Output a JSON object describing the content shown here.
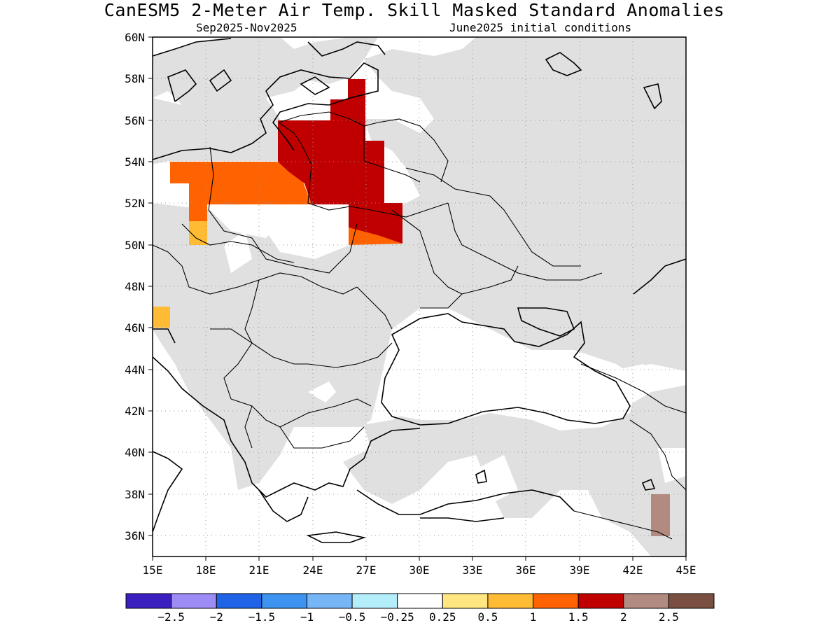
{
  "title": "CanESM5 2-Meter Air Temp. Skill Masked Standard Anomalies",
  "subtitle_left": "Sep2025-Nov2025",
  "subtitle_right": "June2025 initial conditions",
  "map": {
    "lon_range": [
      15,
      45
    ],
    "lat_range": [
      35,
      60
    ],
    "lon_ticks": [
      "15E",
      "18E",
      "21E",
      "24E",
      "27E",
      "30E",
      "33E",
      "36E",
      "39E",
      "42E",
      "45E"
    ],
    "lat_ticks": [
      "60N",
      "58N",
      "56N",
      "54N",
      "52N",
      "50N",
      "48N",
      "46N",
      "44N",
      "42N",
      "40N",
      "38N",
      "36N"
    ],
    "grid": "dotted",
    "no_skill_color": "#e0e0e0",
    "ocean_color": "#ffffff",
    "coastline_color": "#000000"
  },
  "anomaly_regions": [
    {
      "name": "Poland/Belarus orange",
      "category": "1 to 1.5",
      "color": "#ff6200"
    },
    {
      "name": "Belarus/N. Ukraine dark red",
      "category": "1.5 to 2",
      "color": "#c00000"
    },
    {
      "name": "S. Poland light orange",
      "category": "0.5 to 1",
      "color": "#ffbb33"
    },
    {
      "name": "Slovenia light orange",
      "category": "0.5 to 1",
      "color": "#ffbb33"
    },
    {
      "name": "SE Turkey brown",
      "category": "2 to 2.5",
      "color": "#b38a80"
    }
  ],
  "colorbar": {
    "colors": [
      "#3b1fbf",
      "#9d8cf5",
      "#1f63e6",
      "#3c93f0",
      "#76b6f7",
      "#b4eefb",
      "#ffffff",
      "#ffe680",
      "#ffbb33",
      "#ff6200",
      "#c00000",
      "#b38a80",
      "#7a4f41"
    ],
    "labels": [
      "-2.5",
      "-2",
      "-1.5",
      "-1",
      "-0.5",
      "-0.25",
      "0.25",
      "0.5",
      "1",
      "1.5",
      "2",
      "2.5"
    ]
  }
}
